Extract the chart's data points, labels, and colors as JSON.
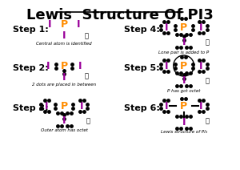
{
  "title": "Lewis  Structure Of PI3",
  "bg_color": "#ffffff",
  "title_color": "#000000",
  "title_fontsize": 13,
  "title_underline": true,
  "P_color": "#ff8c00",
  "I_color": "#990099",
  "step_label_color": "#000000",
  "dot_color": "#000000",
  "step_labels": [
    "Step 1:",
    "Step 2:",
    "Step 3:",
    "Step 4:",
    "Step 5:",
    "Step 6:"
  ],
  "captions": [
    "Central atom is identified",
    "2 dots are placed in between",
    "Outer atom has octet",
    "Lone pair is added to P",
    "P has got octet",
    "Lewis structure of PI₃"
  ]
}
